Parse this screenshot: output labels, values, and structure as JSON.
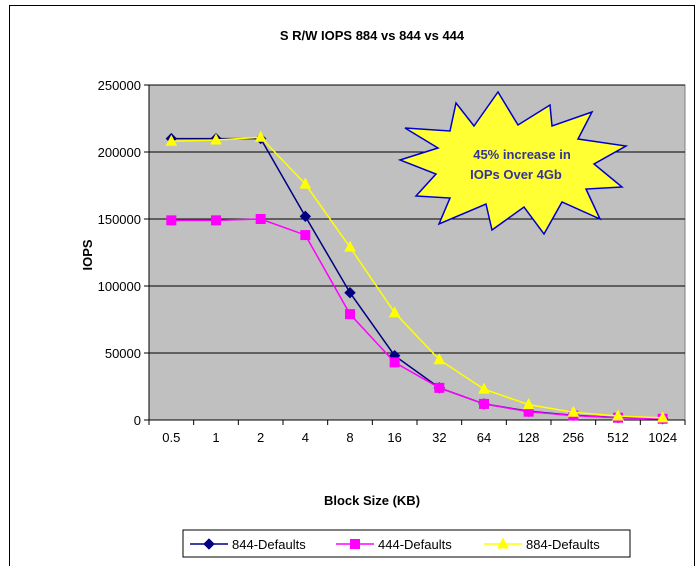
{
  "chart_data": {
    "type": "line",
    "title": "S R/W IOPS 884 vs 844 vs 444",
    "xlabel": "Block Size (KB)",
    "ylabel": "IOPS",
    "categories": [
      "0.5",
      "1",
      "2",
      "4",
      "8",
      "16",
      "32",
      "64",
      "128",
      "256",
      "512",
      "1024"
    ],
    "ylim": [
      0,
      250000
    ],
    "yticks": [
      0,
      50000,
      100000,
      150000,
      200000,
      250000
    ],
    "grid": true,
    "legend": "bottom",
    "plot_background": "#c0c0c0",
    "series": [
      {
        "name": "844-Defaults",
        "color": "#000080",
        "marker": "diamond",
        "x": [
          0,
          1,
          2,
          3,
          4,
          5,
          6,
          7,
          8,
          9,
          10,
          11
        ],
        "values": [
          210000,
          210000,
          210000,
          152000,
          95000,
          48000,
          24000,
          12000,
          6500,
          3500,
          1800,
          900
        ]
      },
      {
        "name": "444-Defaults",
        "color": "#ff00ff",
        "marker": "square",
        "x": [
          0,
          1,
          2,
          3,
          4,
          5,
          6,
          7,
          8,
          9,
          10,
          11
        ],
        "values": [
          149000,
          149000,
          150000,
          138000,
          79000,
          43000,
          24000,
          12000,
          6200,
          3300,
          1700,
          900
        ]
      },
      {
        "name": "884-Defaults",
        "color": "#ffff00",
        "marker": "triangle",
        "x": [
          0,
          1,
          2,
          3,
          4,
          5,
          6,
          7,
          8,
          9,
          10,
          11
        ],
        "values": [
          208000,
          209000,
          211000,
          176000,
          129000,
          80000,
          45000,
          23000,
          11500,
          5800,
          3000,
          1600
        ]
      }
    ],
    "annotation": {
      "lines": [
        "45% increase in",
        "IOPs Over 4Gb"
      ],
      "fill": "#ffff33",
      "stroke": "#0000cc",
      "text_color": "#333399"
    }
  }
}
